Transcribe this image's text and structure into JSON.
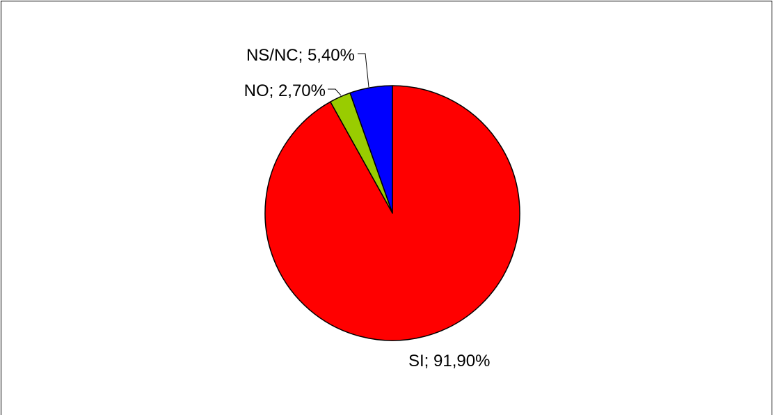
{
  "chart_data": {
    "type": "pie",
    "title": "",
    "start_angle_deg": 0,
    "direction": "clockwise",
    "slices": [
      {
        "name": "SI",
        "value": 91.9,
        "label": "SI; 91,90%",
        "color": "#ff0000"
      },
      {
        "name": "NO",
        "value": 2.7,
        "label": "NO; 2,70%",
        "color": "#99cc00"
      },
      {
        "name": "NS/NC",
        "value": 5.4,
        "label": "NS/NC; 5,40%",
        "color": "#0000ff"
      }
    ],
    "legend": "none",
    "labels_outside_with_leader_lines": true
  }
}
